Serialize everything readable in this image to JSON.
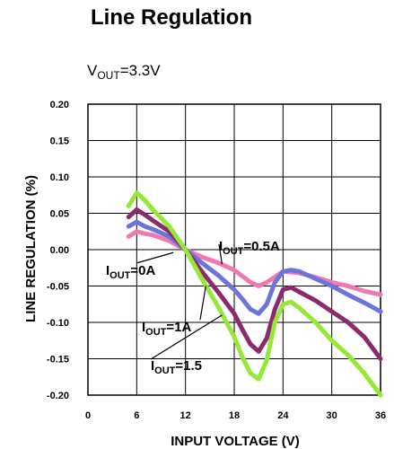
{
  "chart_data": {
    "type": "line",
    "title": "Line Regulation",
    "condition": {
      "prefix": "V",
      "subscript": "OUT",
      "suffix": "=3.3V"
    },
    "xlabel": "INPUT VOLTAGE (V)",
    "ylabel": "LINE REGULATION (%)",
    "xlim": [
      0,
      36
    ],
    "ylim": [
      -0.2,
      0.2
    ],
    "xticks": [
      0,
      6,
      12,
      18,
      24,
      30,
      36
    ],
    "yticks": [
      0.2,
      0.15,
      0.1,
      0.05,
      0.0,
      -0.05,
      -0.1,
      -0.15,
      -0.2
    ],
    "ytick_labels": [
      "0.20",
      "0.15",
      "0.10",
      "0.05",
      "0.00",
      "-0.05",
      "-0.10",
      "-0.15",
      "-0.20"
    ],
    "grid": true,
    "series": [
      {
        "color": "#f07ab0",
        "x": [
          5,
          6,
          7,
          8,
          10,
          12,
          14,
          16,
          18,
          20,
          21,
          22,
          24,
          26,
          28,
          30,
          32,
          34,
          36
        ],
        "y": [
          0.018,
          0.025,
          0.022,
          0.02,
          0.012,
          0.0,
          -0.01,
          -0.018,
          -0.028,
          -0.045,
          -0.05,
          -0.045,
          -0.03,
          -0.032,
          -0.038,
          -0.045,
          -0.05,
          -0.057,
          -0.062
        ]
      },
      {
        "color": "#6b74d9",
        "x": [
          5,
          6,
          7,
          8,
          10,
          12,
          14,
          16,
          18,
          19,
          20,
          21,
          22,
          23,
          24,
          25,
          26,
          28,
          30,
          32,
          34,
          36
        ],
        "y": [
          0.032,
          0.038,
          0.032,
          0.028,
          0.018,
          0.0,
          -0.018,
          -0.035,
          -0.055,
          -0.068,
          -0.082,
          -0.088,
          -0.075,
          -0.045,
          -0.03,
          -0.028,
          -0.03,
          -0.04,
          -0.05,
          -0.062,
          -0.073,
          -0.085
        ]
      },
      {
        "color": "#8b2b6e",
        "x": [
          5,
          6,
          7,
          8,
          10,
          12,
          14,
          16,
          18,
          19,
          20,
          21,
          22,
          23,
          24,
          25,
          26,
          28,
          30,
          32,
          34,
          36
        ],
        "y": [
          0.045,
          0.055,
          0.048,
          0.04,
          0.025,
          0.0,
          -0.03,
          -0.058,
          -0.088,
          -0.11,
          -0.13,
          -0.14,
          -0.122,
          -0.082,
          -0.055,
          -0.052,
          -0.058,
          -0.07,
          -0.085,
          -0.1,
          -0.12,
          -0.15
        ]
      },
      {
        "color": "#96e838",
        "x": [
          5,
          6,
          7,
          8,
          10,
          12,
          14,
          16,
          18,
          19,
          20,
          21,
          22,
          23,
          24,
          25,
          26,
          28,
          30,
          32,
          34,
          36
        ],
        "y": [
          0.06,
          0.078,
          0.068,
          0.055,
          0.032,
          0.0,
          -0.04,
          -0.078,
          -0.12,
          -0.148,
          -0.17,
          -0.178,
          -0.152,
          -0.1,
          -0.075,
          -0.072,
          -0.08,
          -0.1,
          -0.125,
          -0.145,
          -0.17,
          -0.2
        ]
      }
    ],
    "annotations": [
      {
        "prefix": "I",
        "subscript": "OUT",
        "suffix": "=0A",
        "x_data": 10.5,
        "y_data": -0.004,
        "tx": 118,
        "ty": 306,
        "lx": 152,
        "ly": 293
      },
      {
        "prefix": "I",
        "subscript": "OUT",
        "suffix": "=0.5A",
        "x_data": 16.5,
        "y_data": -0.02,
        "tx": 244,
        "ty": 279,
        "lx": 244,
        "ly": 272
      },
      {
        "prefix": "I",
        "subscript": "OUT",
        "suffix": "=1A",
        "x_data": 14.5,
        "y_data": -0.05,
        "tx": 158,
        "ty": 369,
        "lx": 223,
        "ly": 356
      },
      {
        "prefix": "I",
        "subscript": "OUT",
        "suffix": "=1.5",
        "x_data": 16.5,
        "y_data": -0.09,
        "tx": 168,
        "ty": 412,
        "lx": 168,
        "ly": 400
      }
    ]
  }
}
